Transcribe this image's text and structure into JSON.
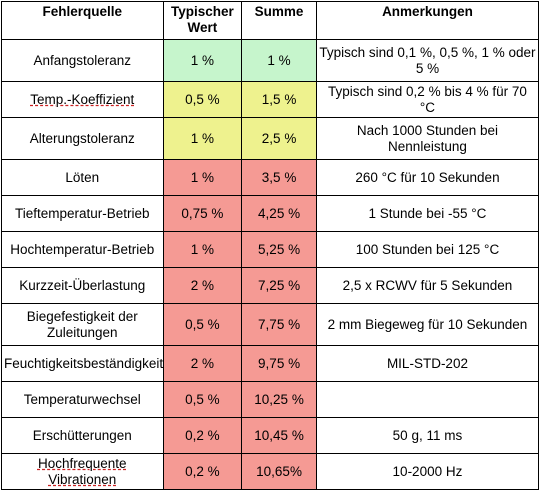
{
  "table": {
    "headers": [
      "Fehlerquelle",
      "Typischer Wert",
      "Summe",
      "Anmerkungen"
    ],
    "rows": [
      {
        "source": "Anfangstoleranz",
        "typical": "1 %",
        "sum": "1 %",
        "note": "Typisch sind 0,1 %, 0,5 %, 1 % oder 5 %",
        "color": "#c6f5cc"
      },
      {
        "source": "Temp.-Koeffizient",
        "typical": "0,5 %",
        "sum": "1,5 %",
        "note": "Typisch sind 0,2 % bis 4 % für 70 °C",
        "color": "#eef28e"
      },
      {
        "source": "Alterungstoleranz",
        "typical": "1 %",
        "sum": "2,5 %",
        "note": "Nach 1000 Stunden bei Nennleistung",
        "color": "#eef28e"
      },
      {
        "source": "Löten",
        "typical": "1 %",
        "sum": "3,5 %",
        "note": "260 °C für 10 Sekunden",
        "color": "#f59a94"
      },
      {
        "source": "Tieftemperatur-Betrieb",
        "typical": "0,75 %",
        "sum": "4,25 %",
        "note": "1 Stunde bei -55 °C",
        "color": "#f59a94"
      },
      {
        "source": "Hochtemperatur-Betrieb",
        "typical": "1 %",
        "sum": "5,25 %",
        "note": "100 Stunden bei 125 °C",
        "color": "#f59a94"
      },
      {
        "source": "Kurzzeit-Überlastung",
        "typical": "2 %",
        "sum": "7,25 %",
        "note": "2,5 x RCWV für 5 Sekunden",
        "color": "#f59a94"
      },
      {
        "source": "Biegefestigkeit der Zuleitungen",
        "typical": "0,5 %",
        "sum": "7,75 %",
        "note": "2 mm Biegeweg für 10 Sekunden",
        "color": "#f59a94"
      },
      {
        "source": "Feuchtigkeitsbeständigkeit",
        "typical": "2 %",
        "sum": "9,75 %",
        "note": "MIL-STD-202",
        "color": "#f59a94"
      },
      {
        "source": "Temperaturwechsel",
        "typical": "0,5 %",
        "sum": "10,25 %",
        "note": "",
        "color": "#f59a94"
      },
      {
        "source": "Erschütterungen",
        "typical": "0,2 %",
        "sum": "10,45 %",
        "note": "50 g, 11 ms",
        "color": "#f59a94"
      },
      {
        "source": "Hochfrequente Vibrationen",
        "typical": "0,2 %",
        "sum": "10,65%",
        "note": "10-2000 Hz",
        "color": "#f59a94"
      }
    ]
  }
}
